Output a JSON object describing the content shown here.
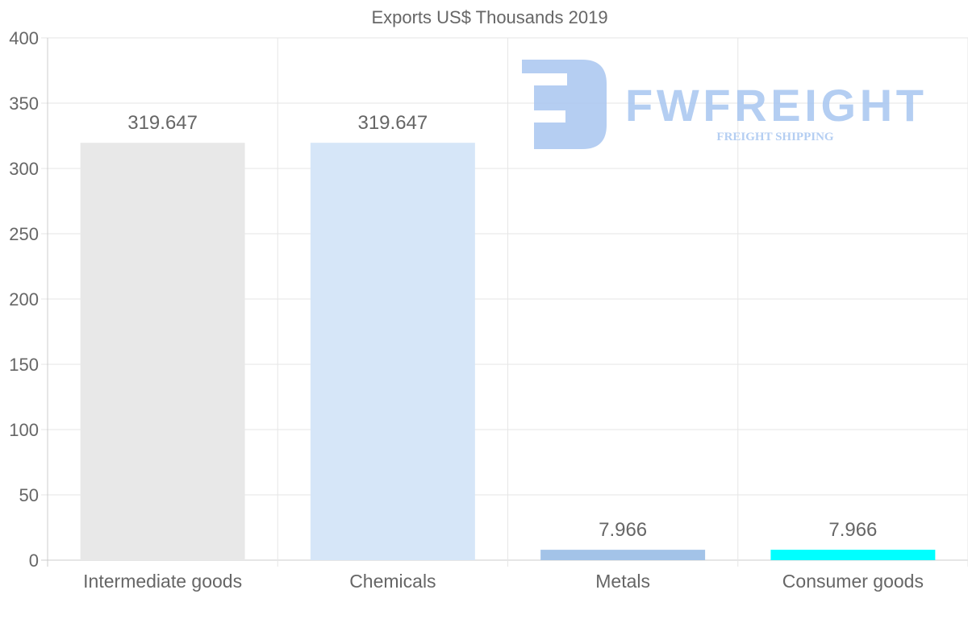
{
  "chart_data": {
    "type": "bar",
    "title": "Exports US$ Thousands 2019",
    "categories": [
      "Intermediate goods",
      "Chemicals",
      "Metals",
      "Consumer goods"
    ],
    "values": [
      319.647,
      319.647,
      7.966,
      7.966
    ],
    "value_labels": [
      "319.647",
      "319.647",
      "7.966",
      "7.966"
    ],
    "colors": [
      "#e8e8e8",
      "#d6e6f8",
      "#a3c3e8",
      "#00ffff"
    ],
    "xlabel": "",
    "ylabel": "",
    "ylim": [
      0,
      400
    ],
    "yticks": [
      0,
      50,
      100,
      150,
      200,
      250,
      300,
      350,
      400
    ],
    "grid": true,
    "legend": "none"
  },
  "watermark": {
    "brand": "FWFREIGHT",
    "tagline": "FREIGHT SHIPPING",
    "color": "#a8c6f0"
  }
}
